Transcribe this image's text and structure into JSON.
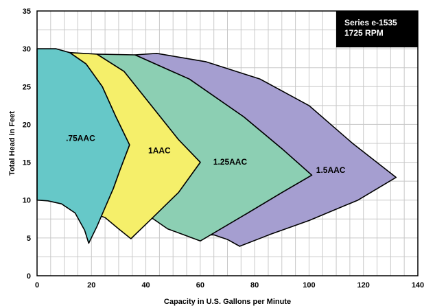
{
  "chart_data": {
    "type": "area",
    "title": "",
    "xlabel": "Capacity in U.S. Gallons per Minute",
    "ylabel": "Total Head in Feet",
    "xlim": [
      0,
      140
    ],
    "ylim": [
      0,
      35
    ],
    "xticks": [
      "0",
      "20",
      "40",
      "60",
      "80",
      "100",
      "120",
      "140"
    ],
    "yticks": [
      "0",
      "5",
      "10",
      "15",
      "20",
      "25",
      "30",
      "35"
    ],
    "grid": true,
    "legend_box": {
      "position": "top-right",
      "lines": [
        "Series e-1535",
        "1725 RPM"
      ],
      "background": "#000000",
      "text_color": "#ffffff"
    },
    "series": [
      {
        "name": ".75AAC",
        "color": "#66c8c8",
        "label_at": [
          16,
          17.8
        ],
        "outline": [
          [
            0,
            30
          ],
          [
            7,
            30
          ],
          [
            12,
            29.5
          ],
          [
            18,
            28
          ],
          [
            24,
            25
          ],
          [
            29,
            21
          ],
          [
            34,
            17.3
          ],
          [
            30.5,
            14
          ],
          [
            28,
            11.5
          ],
          [
            25,
            9
          ],
          [
            22,
            6.5
          ],
          [
            19,
            4.3
          ],
          [
            17.5,
            6
          ],
          [
            14,
            8.3
          ],
          [
            9,
            9.5
          ],
          [
            4,
            9.9
          ],
          [
            0,
            10
          ]
        ]
      },
      {
        "name": "1AAC",
        "color": "#f5ef6a",
        "label_at": [
          45,
          16.2
        ],
        "outline": [
          [
            12,
            29.5
          ],
          [
            22,
            29.3
          ],
          [
            32,
            27
          ],
          [
            42,
            22.5
          ],
          [
            52,
            18
          ],
          [
            60,
            15
          ],
          [
            52,
            11
          ],
          [
            42,
            7.5
          ],
          [
            34.5,
            4.9
          ],
          [
            30,
            6.2
          ],
          [
            25,
            7.7
          ],
          [
            23.3,
            7.9
          ],
          [
            28,
            11.5
          ],
          [
            30.5,
            14
          ],
          [
            34,
            17.3
          ],
          [
            29,
            21
          ],
          [
            24,
            25
          ],
          [
            18,
            28
          ]
        ]
      },
      {
        "name": "1.25AAC",
        "color": "#8ccfb3",
        "label_at": [
          71,
          14.7
        ],
        "outline": [
          [
            22,
            29.3
          ],
          [
            36,
            29.2
          ],
          [
            56,
            26
          ],
          [
            76,
            21
          ],
          [
            90,
            16.8
          ],
          [
            101,
            13.3
          ],
          [
            90,
            11
          ],
          [
            77,
            8.2
          ],
          [
            60,
            4.6
          ],
          [
            54,
            5.4
          ],
          [
            48,
            6.2
          ],
          [
            42,
            7.7
          ],
          [
            52,
            11
          ],
          [
            60,
            15
          ],
          [
            52,
            18
          ],
          [
            42,
            22.5
          ],
          [
            32,
            27
          ]
        ]
      },
      {
        "name": "1.5AAC",
        "color": "#a59ed0",
        "label_at": [
          108,
          13.6
        ],
        "outline": [
          [
            36,
            29.2
          ],
          [
            44,
            29.4
          ],
          [
            62,
            28.3
          ],
          [
            82,
            26
          ],
          [
            100,
            22.5
          ],
          [
            116,
            17.5
          ],
          [
            132,
            13
          ],
          [
            118,
            10
          ],
          [
            100,
            7.3
          ],
          [
            86,
            5.5
          ],
          [
            74.5,
            3.9
          ],
          [
            70,
            4.8
          ],
          [
            65,
            5.4
          ],
          [
            60,
            5.4
          ],
          [
            77,
            8.2
          ],
          [
            90,
            11
          ],
          [
            101,
            13.3
          ],
          [
            90,
            16.8
          ],
          [
            76,
            21
          ],
          [
            56,
            26
          ]
        ]
      }
    ]
  }
}
